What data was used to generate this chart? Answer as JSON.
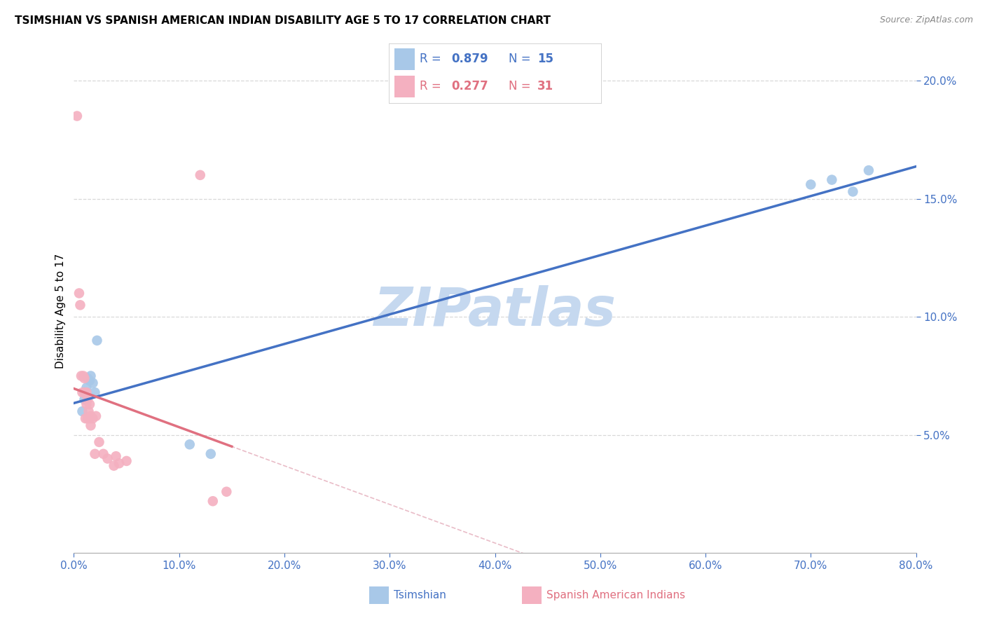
{
  "title": "TSIMSHIAN VS SPANISH AMERICAN INDIAN DISABILITY AGE 5 TO 17 CORRELATION CHART",
  "source": "Source: ZipAtlas.com",
  "ylabel": "Disability Age 5 to 17",
  "label_tsimshian": "Tsimshian",
  "label_spanish": "Spanish American Indians",
  "tsimshian_R": 0.879,
  "tsimshian_N": 15,
  "spanish_R": 0.277,
  "spanish_N": 31,
  "tsimshian_dot_color": "#a8c8e8",
  "spanish_dot_color": "#f4b0c0",
  "tsimshian_line_color": "#4472c4",
  "spanish_line_color": "#e07080",
  "diag_color": "#e0a0b0",
  "grid_color": "#d8d8d8",
  "tick_color": "#4472c4",
  "watermark": "ZIPatlas",
  "watermark_color": "#c5d8ef",
  "xlim": [
    0.0,
    0.8
  ],
  "ylim": [
    0.0,
    0.205
  ],
  "x_ticks": [
    0.0,
    0.1,
    0.2,
    0.3,
    0.4,
    0.5,
    0.6,
    0.7,
    0.8
  ],
  "y_ticks": [
    0.05,
    0.1,
    0.15,
    0.2
  ],
  "tsimshian_x": [
    0.008,
    0.01,
    0.012,
    0.013,
    0.015,
    0.016,
    0.018,
    0.02,
    0.022,
    0.11,
    0.13,
    0.7,
    0.72,
    0.74,
    0.755
  ],
  "tsimshian_y": [
    0.06,
    0.065,
    0.07,
    0.074,
    0.073,
    0.075,
    0.072,
    0.068,
    0.09,
    0.046,
    0.042,
    0.156,
    0.158,
    0.153,
    0.162
  ],
  "spanish_x": [
    0.003,
    0.005,
    0.006,
    0.007,
    0.008,
    0.009,
    0.01,
    0.01,
    0.011,
    0.012,
    0.012,
    0.013,
    0.013,
    0.014,
    0.015,
    0.015,
    0.016,
    0.016,
    0.018,
    0.02,
    0.021,
    0.024,
    0.028,
    0.032,
    0.038,
    0.04,
    0.043,
    0.05,
    0.12,
    0.132,
    0.145
  ],
  "spanish_y": [
    0.185,
    0.11,
    0.105,
    0.075,
    0.068,
    0.075,
    0.074,
    0.068,
    0.057,
    0.063,
    0.068,
    0.065,
    0.057,
    0.06,
    0.063,
    0.057,
    0.058,
    0.054,
    0.057,
    0.042,
    0.058,
    0.047,
    0.042,
    0.04,
    0.037,
    0.041,
    0.038,
    0.039,
    0.16,
    0.022,
    0.026
  ],
  "bg_color": "#ffffff",
  "title_fontsize": 11,
  "source_fontsize": 9,
  "tick_fontsize": 11,
  "ylabel_fontsize": 11,
  "legend_fontsize": 12,
  "watermark_fontsize": 55,
  "dot_size": 110,
  "line_width": 2.5
}
